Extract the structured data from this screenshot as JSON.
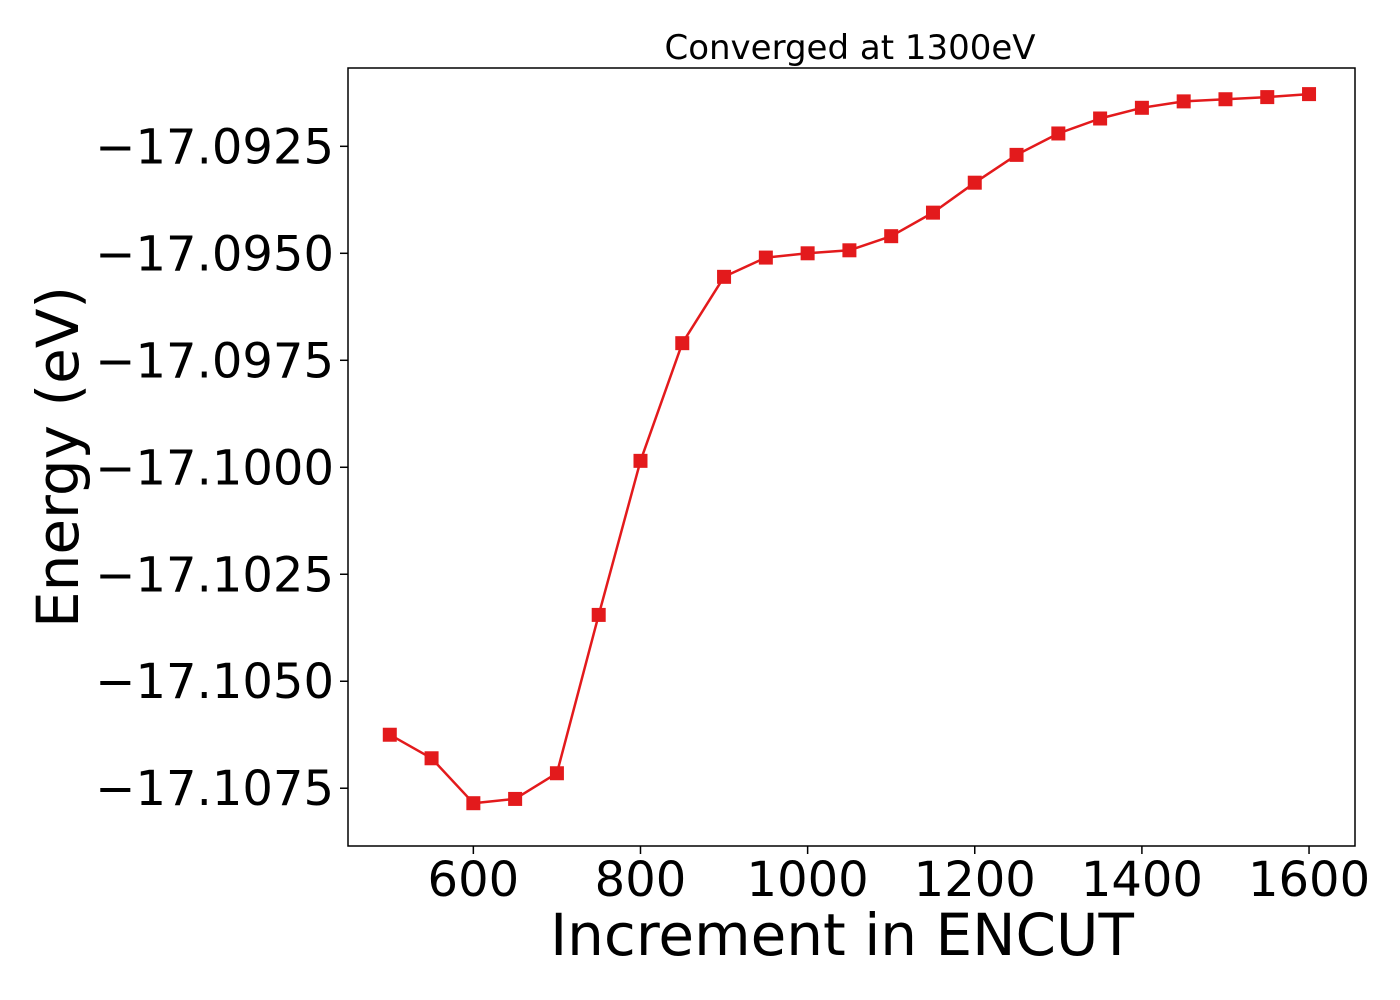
{
  "chart_data": {
    "type": "line",
    "title": "Converged at 1300eV",
    "xlabel": "Increment in ENCUT",
    "ylabel": "Energy (eV)",
    "xlim": [
      450,
      1655
    ],
    "ylim": [
      -17.10885,
      -17.09067
    ],
    "x_ticks": [
      600,
      800,
      1000,
      1200,
      1400,
      1600
    ],
    "x_tick_labels": [
      "600",
      "800",
      "1000",
      "1200",
      "1400",
      "1600"
    ],
    "y_ticks": [
      -17.0925,
      -17.095,
      -17.0975,
      -17.1,
      -17.1025,
      -17.105,
      -17.1075
    ],
    "y_tick_labels": [
      "−17.0925",
      "−17.0950",
      "−17.0975",
      "−17.1000",
      "−17.1025",
      "−17.1050",
      "−17.1075"
    ],
    "grid": false,
    "legend": "none",
    "series": [
      {
        "color": "#e31a1c",
        "marker": "square",
        "x": [
          500,
          550,
          600,
          650,
          700,
          750,
          800,
          850,
          900,
          950,
          1000,
          1050,
          1100,
          1150,
          1200,
          1250,
          1300,
          1350,
          1400,
          1450,
          1500,
          1550,
          1600
        ],
        "y": [
          -17.10625,
          -17.1068,
          -17.10785,
          -17.10775,
          -17.10715,
          -17.10345,
          -17.09985,
          -17.0971,
          -17.09555,
          -17.0951,
          -17.095,
          -17.09493,
          -17.0946,
          -17.09405,
          -17.09335,
          -17.0927,
          -17.0922,
          -17.09185,
          -17.0916,
          -17.09145,
          -17.0914,
          -17.09135,
          -17.09128
        ]
      }
    ]
  }
}
